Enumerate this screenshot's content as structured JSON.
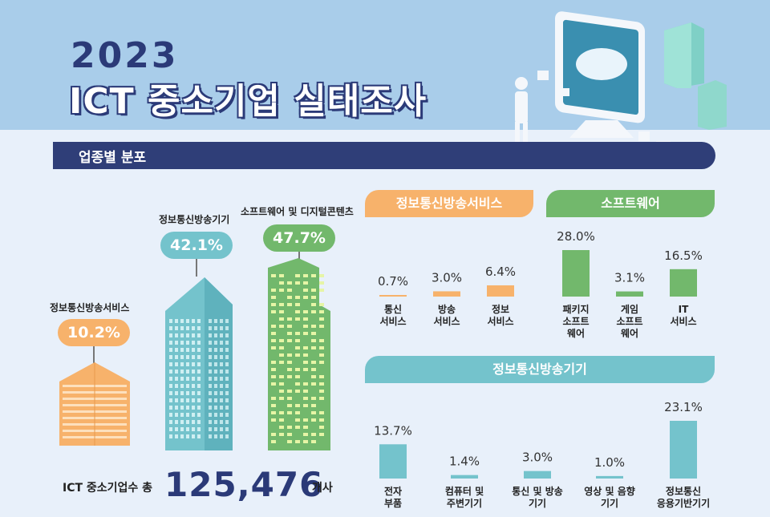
{
  "header": {
    "year": "2023",
    "title": "ICT 중소기업 실태조사"
  },
  "section": {
    "title": "업종별 분포"
  },
  "left": {
    "buildings": [
      {
        "label": "정보통신방송서비스",
        "value": "10.2%",
        "color": "#f7b26b"
      },
      {
        "label": "정보통신방송기기",
        "value": "42.1%",
        "color": "#74c3cc"
      },
      {
        "label": "소프트웨어 및 디지털콘텐츠",
        "value": "47.7%",
        "color": "#72b86c"
      }
    ],
    "total_label": "ICT 중소기업수 총",
    "total_value": "125,476",
    "total_unit": "개사"
  },
  "colors": {
    "orange": "#f7b26b",
    "teal": "#74c3cc",
    "green": "#72b86c",
    "navy": "#2f3e78"
  },
  "chart_data": [
    {
      "type": "bar",
      "title": "정보통신방송서비스",
      "categories": [
        "통신\n서비스",
        "방송\n서비스",
        "정보\n서비스"
      ],
      "values": [
        0.7,
        3.0,
        6.4
      ],
      "labels": [
        "0.7%",
        "3.0%",
        "6.4%"
      ],
      "color": "#f7b26b"
    },
    {
      "type": "bar",
      "title": "소프트웨어",
      "categories": [
        "패키지\n소프트\n웨어",
        "게임\n소프트\n웨어",
        "IT\n서비스"
      ],
      "values": [
        28.0,
        3.1,
        16.5
      ],
      "labels": [
        "28.0%",
        "3.1%",
        "16.5%"
      ],
      "color": "#72b86c"
    },
    {
      "type": "bar",
      "title": "정보통신방송기기",
      "categories": [
        "전자\n부품",
        "컴퓨터 및\n주변기기",
        "통신 및 방송\n기기",
        "영상 및 음향\n기기",
        "정보통신\n응용기반기기"
      ],
      "values": [
        13.7,
        1.4,
        3.0,
        1.0,
        23.1
      ],
      "labels": [
        "13.7%",
        "1.4%",
        "3.0%",
        "1.0%",
        "23.1%"
      ],
      "color": "#74c3cc"
    }
  ]
}
